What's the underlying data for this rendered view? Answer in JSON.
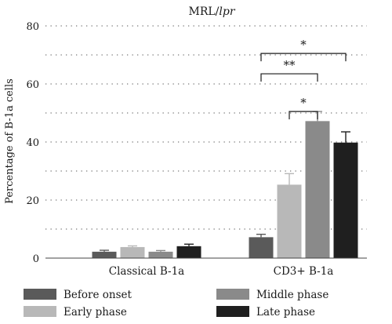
{
  "chart_data": {
    "type": "bar",
    "title_prefix": "MRL/",
    "title_italic": "lpr",
    "ylabel": "Percentage of B-1a cells",
    "ylim": [
      0,
      80
    ],
    "yticks": [
      0,
      20,
      40,
      60,
      80
    ],
    "y_gridlines": [
      0,
      10,
      20,
      30,
      40,
      50,
      60,
      70,
      80
    ],
    "grid": "dotted horizontal",
    "categories": [
      "Classical B-1a",
      "CD3+ B-1a"
    ],
    "series": [
      {
        "name": "Before onset",
        "color": "#5a5a5a",
        "values": [
          2.2,
          7.2
        ],
        "errors": [
          0.5,
          1.0
        ]
      },
      {
        "name": "Early phase",
        "color": "#b8b8b8",
        "values": [
          3.8,
          25.3
        ],
        "errors": [
          0.4,
          3.8
        ]
      },
      {
        "name": "Middle phase",
        "color": "#8a8a8a",
        "values": [
          2.2,
          47.2
        ],
        "errors": [
          0.4,
          3.3
        ]
      },
      {
        "name": "Late phase",
        "color": "#1f1f1f",
        "values": [
          4.1,
          39.8
        ],
        "errors": [
          0.7,
          3.7
        ]
      }
    ],
    "significance": [
      {
        "category": "CD3+ B-1a",
        "from_series": 0,
        "to_series": 3,
        "label": "*",
        "level": 70.5
      },
      {
        "category": "CD3+ B-1a",
        "from_series": 0,
        "to_series": 2,
        "label": "**",
        "level": 63.5
      },
      {
        "category": "CD3+ B-1a",
        "from_series": 1,
        "to_series": 2,
        "label": "*",
        "level": 50.5
      }
    ],
    "legend_position": "bottom"
  }
}
